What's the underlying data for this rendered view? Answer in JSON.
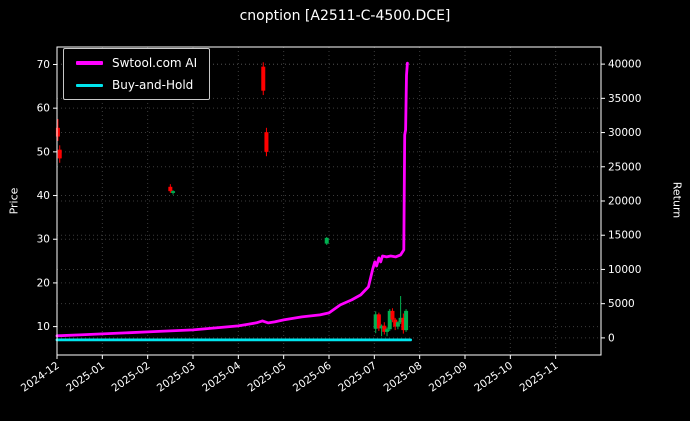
{
  "chart_data": {
    "type": "line",
    "title": "cnoption [A2511-C-4500.DCE]",
    "x_unit": "month index from 2024-12",
    "x_range": [
      0,
      12
    ],
    "x_tick_labels": [
      "2024-12",
      "2025-01",
      "2025-02",
      "2025-03",
      "2025-04",
      "2025-05",
      "2025-06",
      "2025-07",
      "2025-08",
      "2025-09",
      "2025-10",
      "2025-11"
    ],
    "grid": true,
    "legend_position": "upper-left",
    "background_color": "#000000",
    "grid_color": "#3c3c3c",
    "axis_color": "#ffffff",
    "text_color": "#ffffff",
    "left_axis": {
      "label": "Price",
      "range": [
        3.5,
        74
      ],
      "ticks": [
        10,
        20,
        30,
        40,
        50,
        60,
        70
      ]
    },
    "right_axis": {
      "label": "Return",
      "range": [
        -2500,
        42500
      ],
      "ticks": [
        0,
        5000,
        10000,
        15000,
        20000,
        25000,
        30000,
        35000,
        40000
      ]
    },
    "series": [
      {
        "name": "Swtool.com AI",
        "axis": "right",
        "color": "#ff00ff",
        "width": 2.8,
        "points": [
          [
            0,
            300
          ],
          [
            0.5,
            440
          ],
          [
            1,
            580
          ],
          [
            1.5,
            730
          ],
          [
            2,
            880
          ],
          [
            2.5,
            1020
          ],
          [
            3,
            1170
          ],
          [
            3.5,
            1460
          ],
          [
            4,
            1750
          ],
          [
            4.2,
            1970
          ],
          [
            4.4,
            2200
          ],
          [
            4.53,
            2480
          ],
          [
            4.66,
            2190
          ],
          [
            4.8,
            2340
          ],
          [
            5,
            2630
          ],
          [
            5.4,
            3070
          ],
          [
            5.8,
            3360
          ],
          [
            6,
            3650
          ],
          [
            6.25,
            4820
          ],
          [
            6.5,
            5550
          ],
          [
            6.7,
            6280
          ],
          [
            6.87,
            7450
          ],
          [
            6.96,
            9930
          ],
          [
            7.01,
            11100
          ],
          [
            7.05,
            10510
          ],
          [
            7.1,
            11680
          ],
          [
            7.14,
            11100
          ],
          [
            7.18,
            11970
          ],
          [
            7.27,
            11830
          ],
          [
            7.36,
            11970
          ],
          [
            7.47,
            11830
          ],
          [
            7.58,
            12120
          ],
          [
            7.65,
            12850
          ],
          [
            7.67,
            29640
          ],
          [
            7.69,
            30370
          ],
          [
            7.71,
            38400
          ],
          [
            7.73,
            40150
          ]
        ]
      },
      {
        "name": "Buy-and-Hold",
        "axis": "right",
        "color": "#00e5ee",
        "width": 2.8,
        "points": [
          [
            0,
            -300
          ],
          [
            7.8,
            -300
          ]
        ]
      }
    ],
    "candles": {
      "axis": "left",
      "up_color": "#00b050",
      "down_color": "#ff0000",
      "items": [
        [
          0.02,
          55.5,
          57.5,
          52.5,
          53.5
        ],
        [
          0.06,
          50.5,
          51.5,
          47.5,
          48.5
        ],
        [
          2.5,
          42.0,
          42.6,
          40.6,
          41.0
        ],
        [
          2.56,
          40.6,
          41.2,
          40.2,
          41.0
        ],
        [
          4.55,
          69.5,
          70.5,
          63.0,
          64.0
        ],
        [
          4.62,
          54.5,
          55.5,
          49.0,
          50.0
        ],
        [
          5.95,
          29.0,
          30.5,
          28.7,
          30.3
        ],
        [
          7.03,
          9.5,
          13.5,
          8.5,
          12.8
        ],
        [
          7.1,
          12.8,
          13.2,
          9.0,
          9.6
        ],
        [
          7.16,
          9.6,
          10.5,
          7.8,
          10.2
        ],
        [
          7.22,
          10.2,
          11.0,
          8.2,
          8.8
        ],
        [
          7.28,
          8.8,
          9.8,
          7.8,
          9.4
        ],
        [
          7.34,
          9.4,
          14.0,
          9.0,
          13.6
        ],
        [
          7.4,
          13.6,
          14.2,
          11.0,
          11.6
        ],
        [
          7.46,
          11.6,
          12.0,
          9.2,
          10.0
        ],
        [
          7.52,
          10.0,
          11.2,
          9.4,
          11.0
        ],
        [
          7.58,
          11.0,
          17.0,
          10.6,
          12.0
        ],
        [
          7.64,
          12.0,
          13.0,
          8.4,
          9.2
        ],
        [
          7.7,
          9.2,
          14.0,
          8.8,
          13.6
        ]
      ]
    }
  }
}
